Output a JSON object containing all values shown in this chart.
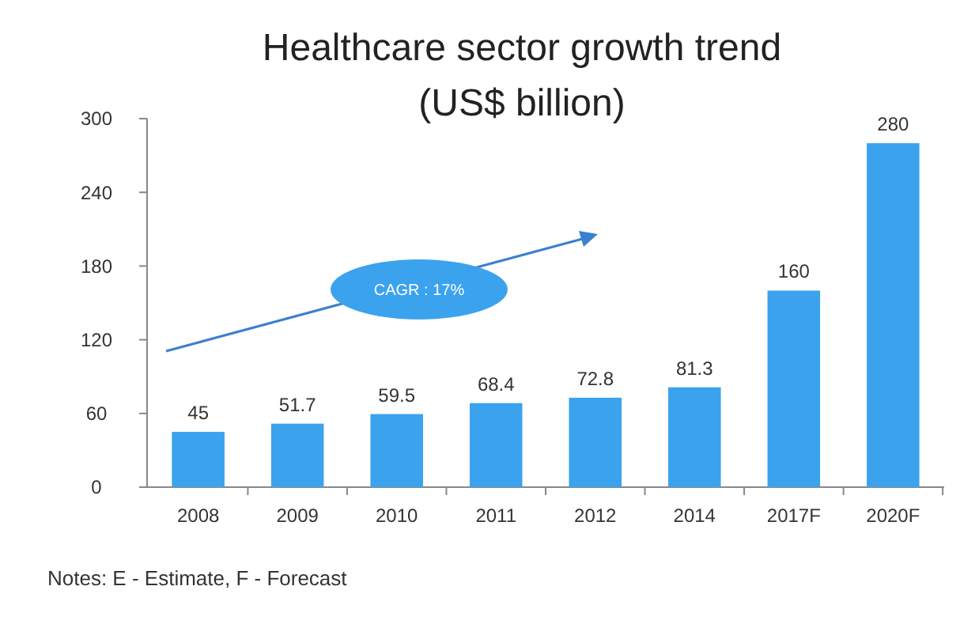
{
  "chart_data": {
    "type": "bar",
    "title": "Healthcare sector growth trend",
    "subtitle": "(US$ billion)",
    "categories": [
      "2008",
      "2009",
      "2010",
      "2011",
      "2012",
      "2014",
      "2017F",
      "2020F"
    ],
    "values": [
      45,
      51.7,
      59.5,
      68.4,
      72.8,
      81.3,
      160,
      280
    ],
    "color": "#3ba2ee",
    "ylim": [
      0,
      300
    ],
    "yticks": [
      0,
      60,
      120,
      180,
      240,
      300
    ],
    "grid": false,
    "data_labels": true,
    "annotations": [
      "CAGR : 17%",
      "Notes: E - Estimate, F - Forecast"
    ]
  }
}
